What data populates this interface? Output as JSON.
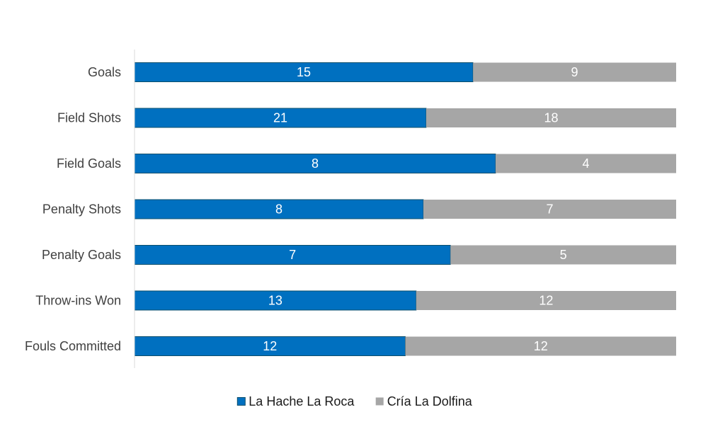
{
  "chart_data": {
    "type": "bar",
    "orientation": "horizontal",
    "stacking": "percent",
    "categories": [
      "Goals",
      "Field Shots",
      "Field Goals",
      "Penalty Shots",
      "Penalty Goals",
      "Throw-ins Won",
      "Fouls Committed"
    ],
    "series": [
      {
        "name": "La Hache La Roca",
        "values": [
          15,
          21,
          8,
          8,
          7,
          13,
          12
        ],
        "color": "#0070C0"
      },
      {
        "name": "Cría La Dolfina",
        "values": [
          9,
          18,
          4,
          7,
          5,
          12,
          12
        ],
        "color": "#A6A6A6"
      }
    ],
    "title": "",
    "xlabel": "",
    "ylabel": "",
    "xlim": [
      0,
      100
    ],
    "grid": false,
    "legend": "bottom"
  }
}
